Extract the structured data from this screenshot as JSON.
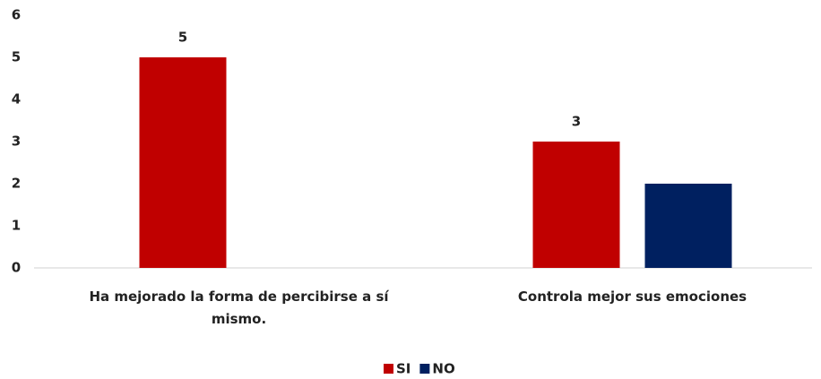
{
  "chart_data": {
    "type": "bar",
    "categories": [
      "Ha mejorado la forma de percibirse a sí mismo.",
      "Controla mejor sus emociones"
    ],
    "series": [
      {
        "name": "SI",
        "color": "#c00000",
        "values": [
          5,
          3
        ],
        "show_labels": true
      },
      {
        "name": "NO",
        "color": "#002060",
        "values": [
          0,
          2
        ],
        "show_labels": false
      }
    ],
    "ylim": [
      0,
      6
    ],
    "yticks": [
      0,
      1,
      2,
      3,
      4,
      5,
      6
    ],
    "grid": false,
    "legend": "bottom"
  }
}
